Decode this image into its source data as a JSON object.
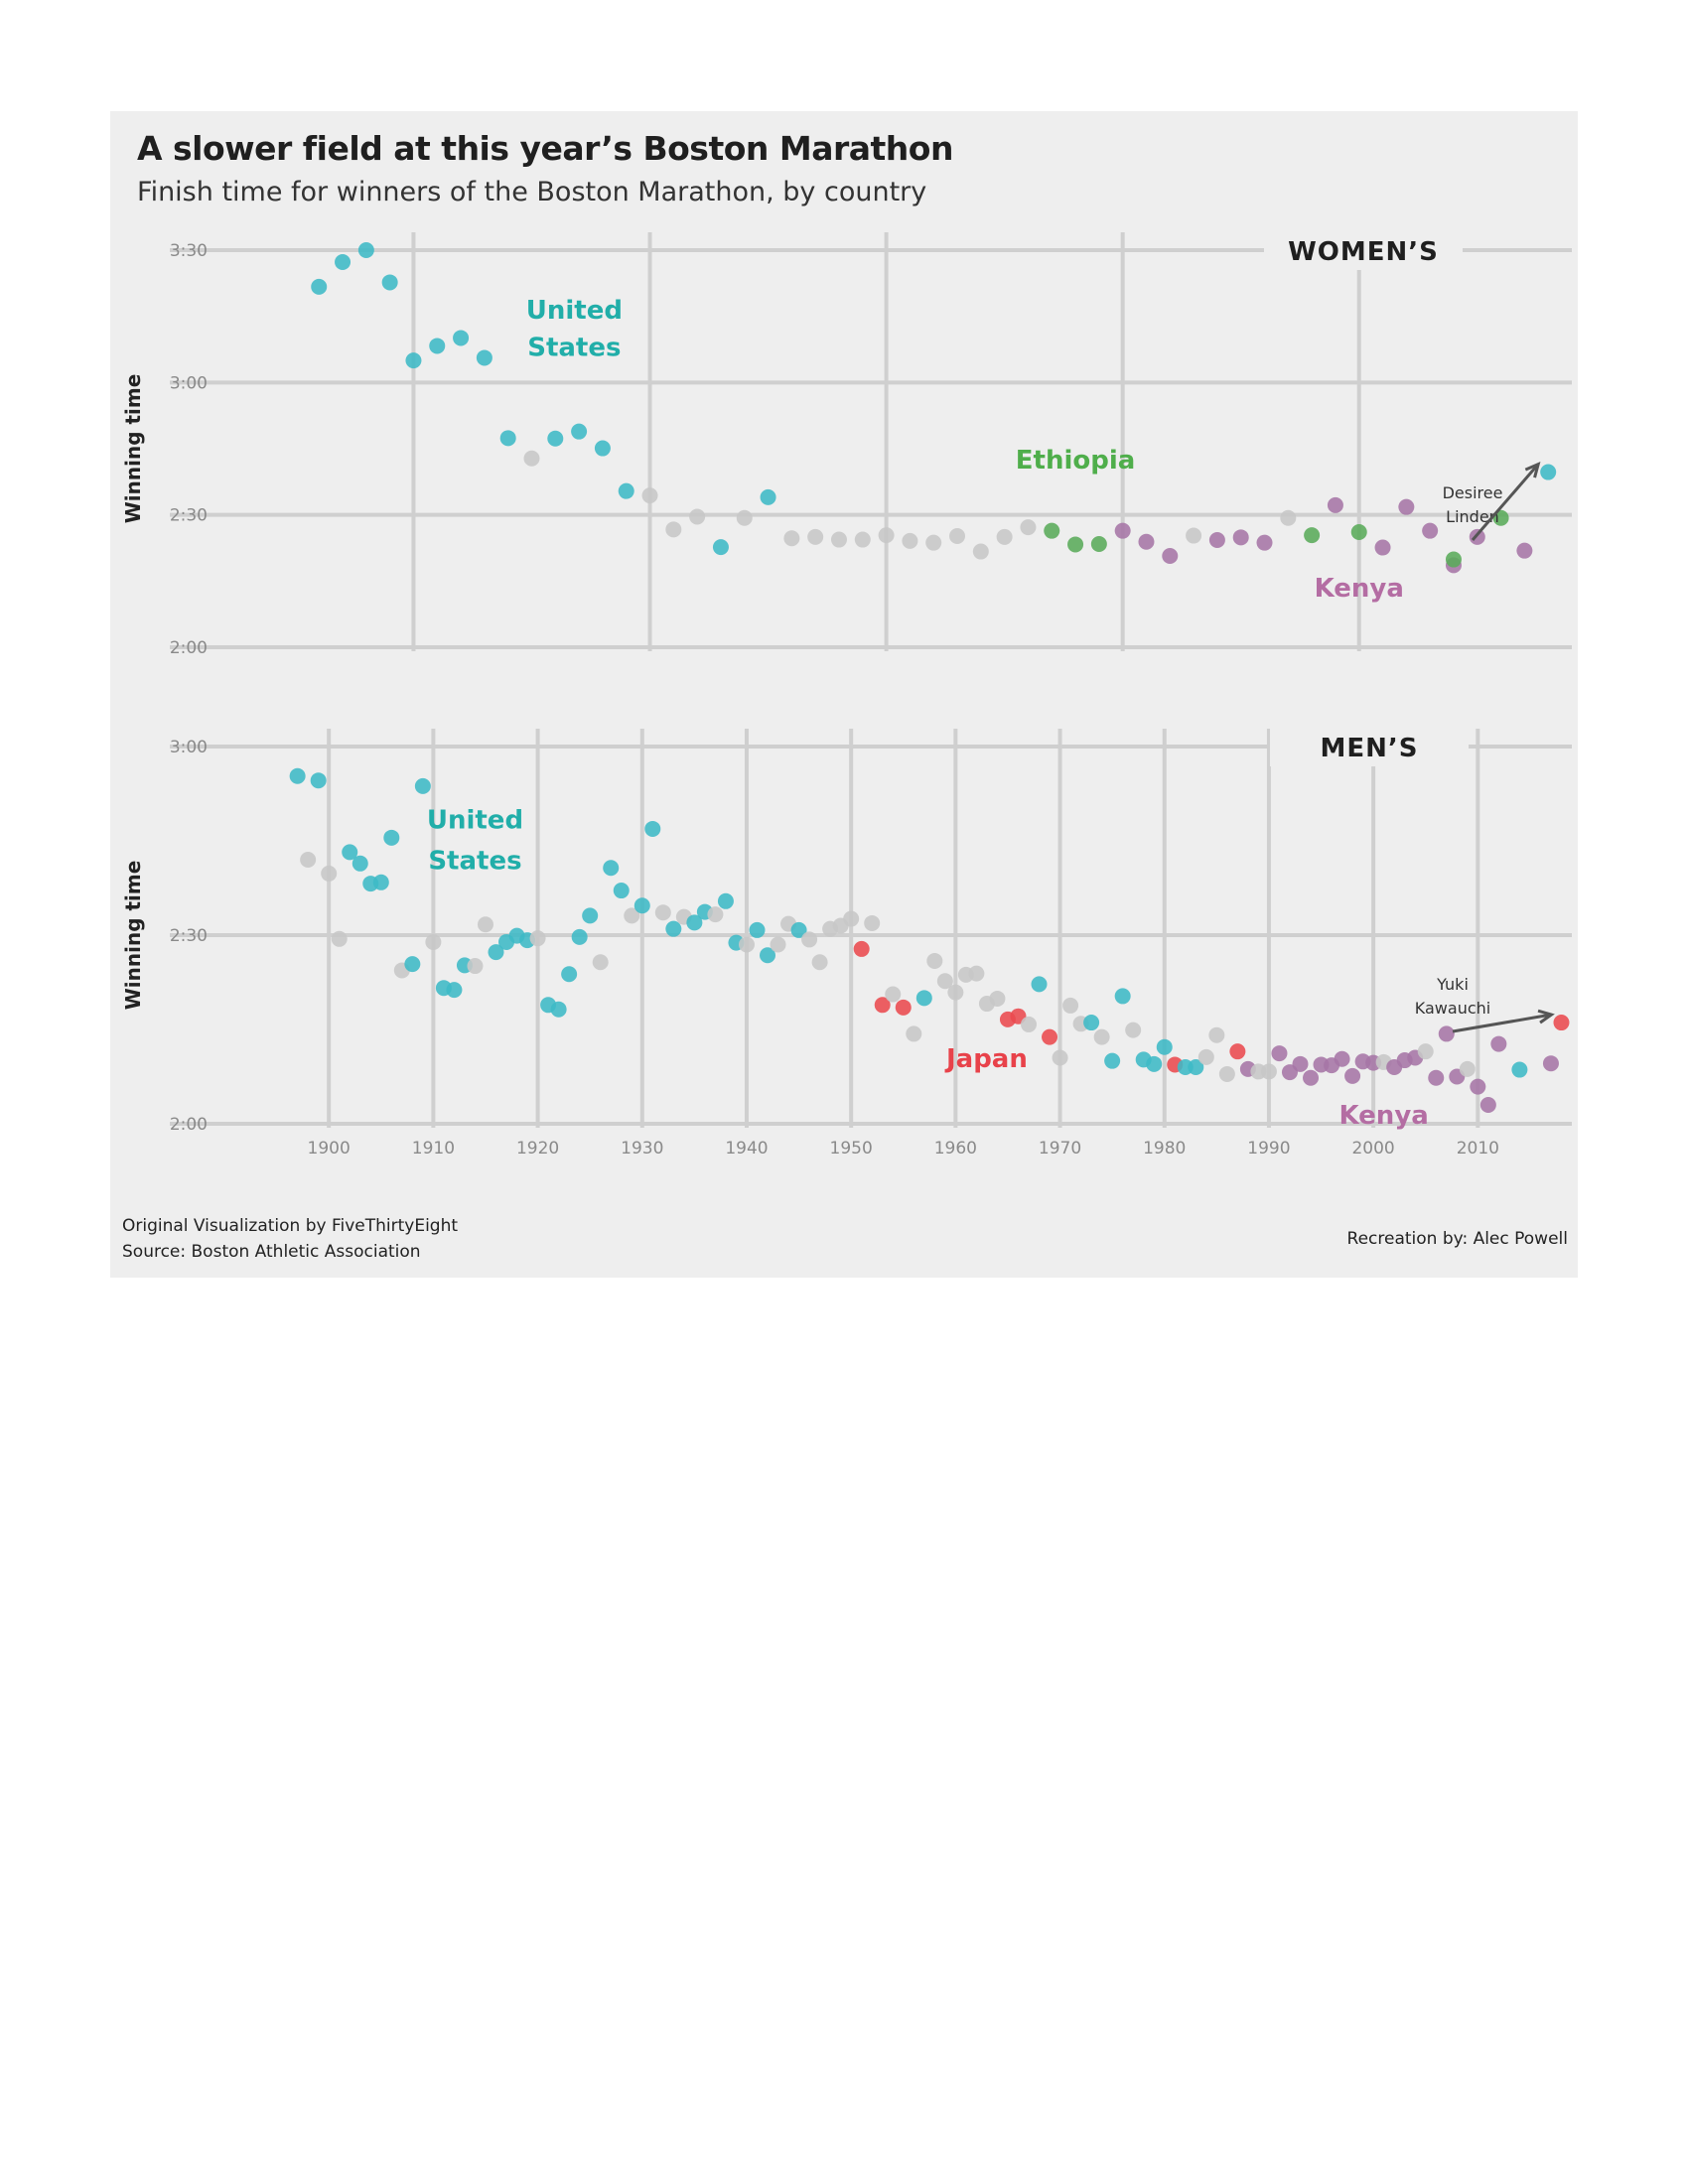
{
  "title": "A slower field at this year’s Boston Marathon",
  "subtitle": "Finish time for winners of the Boston Marathon, by country",
  "footer": {
    "credit": "Original Visualization by FiveThirtyEight",
    "source": "Source: Boston Athletic Association",
    "recreation": "Recreation by: Alec Powell"
  },
  "colors": {
    "United States": "#3dbac6",
    "Ethiopia": "#5aab5a",
    "Kenya": "#a675a6",
    "Japan": "#ea4a4f",
    "Other": "#c7c7c7",
    "label_us": "#21aea9",
    "label_ethiopia": "#4fae4b",
    "label_kenya": "#b46da3",
    "label_japan": "#e8424a"
  },
  "chart_data": [
    {
      "type": "scatter",
      "panel_label": "WOMEN’S",
      "ylabel": "Winning time",
      "xlim": [
        1962,
        2019
      ],
      "ylim": [
        120,
        210
      ],
      "xticks": [
        1970,
        1980,
        1990,
        2000,
        2010
      ],
      "yticks": [
        {
          "value": 120,
          "label": "2:00"
        },
        {
          "value": 150,
          "label": "2:30"
        },
        {
          "value": 180,
          "label": "3:00"
        },
        {
          "value": 210,
          "label": "3:30"
        }
      ],
      "grid": true,
      "country_labels": [
        {
          "text": "United",
          "x": 1976.8,
          "y": 194.5,
          "color_key": "label_us"
        },
        {
          "text": "States",
          "x": 1976.8,
          "y": 186.0,
          "color_key": "label_us"
        },
        {
          "text": "Ethiopia",
          "x": 1998.0,
          "y": 160.5,
          "color_key": "label_ethiopia"
        },
        {
          "text": "Kenya",
          "x": 2010.0,
          "y": 131.5,
          "color_key": "label_kenya"
        }
      ],
      "annotation": {
        "lines": [
          "Desiree",
          "Linden"
        ],
        "point": [
          2018,
          159.7
        ]
      },
      "points": [
        {
          "x": 1966,
          "y": 201.7,
          "c": "United States"
        },
        {
          "x": 1967,
          "y": 207.3,
          "c": "United States"
        },
        {
          "x": 1968,
          "y": 210.0,
          "c": "United States"
        },
        {
          "x": 1969,
          "y": 202.7,
          "c": "United States"
        },
        {
          "x": 1970,
          "y": 185.0,
          "c": "United States"
        },
        {
          "x": 1971,
          "y": 188.3,
          "c": "United States"
        },
        {
          "x": 1972,
          "y": 190.1,
          "c": "United States"
        },
        {
          "x": 1973,
          "y": 185.6,
          "c": "United States"
        },
        {
          "x": 1974,
          "y": 167.4,
          "c": "United States"
        },
        {
          "x": 1975,
          "y": 162.8,
          "c": "Other"
        },
        {
          "x": 1976,
          "y": 167.3,
          "c": "United States"
        },
        {
          "x": 1977,
          "y": 168.9,
          "c": "United States"
        },
        {
          "x": 1978,
          "y": 165.1,
          "c": "United States"
        },
        {
          "x": 1979,
          "y": 155.4,
          "c": "United States"
        },
        {
          "x": 1980,
          "y": 154.4,
          "c": "Other"
        },
        {
          "x": 1981,
          "y": 146.7,
          "c": "Other"
        },
        {
          "x": 1982,
          "y": 149.6,
          "c": "Other"
        },
        {
          "x": 1983,
          "y": 142.7,
          "c": "United States"
        },
        {
          "x": 1984,
          "y": 149.3,
          "c": "Other"
        },
        {
          "x": 1985,
          "y": 154.0,
          "c": "United States"
        },
        {
          "x": 1986,
          "y": 144.7,
          "c": "Other"
        },
        {
          "x": 1987,
          "y": 145.0,
          "c": "Other"
        },
        {
          "x": 1988,
          "y": 144.4,
          "c": "Other"
        },
        {
          "x": 1989,
          "y": 144.4,
          "c": "Other"
        },
        {
          "x": 1990,
          "y": 145.4,
          "c": "Other"
        },
        {
          "x": 1991,
          "y": 144.1,
          "c": "Other"
        },
        {
          "x": 1992,
          "y": 143.7,
          "c": "Other"
        },
        {
          "x": 1993,
          "y": 145.2,
          "c": "Other"
        },
        {
          "x": 1994,
          "y": 141.7,
          "c": "Other"
        },
        {
          "x": 1995,
          "y": 145.0,
          "c": "Other"
        },
        {
          "x": 1996,
          "y": 147.2,
          "c": "Other"
        },
        {
          "x": 1997,
          "y": 146.4,
          "c": "Ethiopia"
        },
        {
          "x": 1998,
          "y": 143.3,
          "c": "Ethiopia"
        },
        {
          "x": 1999,
          "y": 143.4,
          "c": "Ethiopia"
        },
        {
          "x": 2000,
          "y": 146.4,
          "c": "Kenya"
        },
        {
          "x": 2001,
          "y": 143.9,
          "c": "Kenya"
        },
        {
          "x": 2002,
          "y": 140.7,
          "c": "Kenya"
        },
        {
          "x": 2003,
          "y": 145.3,
          "c": "Other"
        },
        {
          "x": 2004,
          "y": 144.3,
          "c": "Kenya"
        },
        {
          "x": 2005,
          "y": 144.9,
          "c": "Kenya"
        },
        {
          "x": 2006,
          "y": 143.7,
          "c": "Kenya"
        },
        {
          "x": 2007,
          "y": 149.3,
          "c": "Other"
        },
        {
          "x": 2008,
          "y": 145.4,
          "c": "Ethiopia"
        },
        {
          "x": 2009,
          "y": 152.2,
          "c": "Kenya"
        },
        {
          "x": 2010,
          "y": 146.1,
          "c": "Ethiopia"
        },
        {
          "x": 2011,
          "y": 142.6,
          "c": "Kenya"
        },
        {
          "x": 2012,
          "y": 151.8,
          "c": "Kenya"
        },
        {
          "x": 2013,
          "y": 146.4,
          "c": "Kenya"
        },
        {
          "x": 2014,
          "y": 138.6,
          "c": "Kenya"
        },
        {
          "x": 2014,
          "y": 139.9,
          "c": "Ethiopia"
        },
        {
          "x": 2015,
          "y": 145.0,
          "c": "Kenya"
        },
        {
          "x": 2016,
          "y": 149.3,
          "c": "Ethiopia"
        },
        {
          "x": 2017,
          "y": 141.9,
          "c": "Kenya"
        },
        {
          "x": 2018,
          "y": 159.7,
          "c": "United States"
        }
      ]
    },
    {
      "type": "scatter",
      "panel_label": "MEN’S",
      "ylabel": "Winning time",
      "xlim": [
        1890,
        2019
      ],
      "ylim": [
        120,
        180
      ],
      "xticks": [
        1900,
        1910,
        1920,
        1930,
        1940,
        1950,
        1960,
        1970,
        1980,
        1990,
        2000,
        2010
      ],
      "yticks": [
        {
          "value": 120,
          "label": "2:00"
        },
        {
          "value": 150,
          "label": "2:30"
        },
        {
          "value": 180,
          "label": "3:00"
        }
      ],
      "grid": true,
      "country_labels": [
        {
          "text": "United",
          "x": 1914.0,
          "y": 167.0,
          "color_key": "label_us"
        },
        {
          "text": "States",
          "x": 1914.0,
          "y": 160.5,
          "color_key": "label_us"
        },
        {
          "text": "Japan",
          "x": 1963.0,
          "y": 129.0,
          "color_key": "label_japan"
        },
        {
          "text": "Kenya",
          "x": 2001.0,
          "y": 120.0,
          "color_key": "label_kenya"
        }
      ],
      "annotation": {
        "lines": [
          "Yuki",
          "Kawauchi"
        ],
        "point": [
          2018,
          136.1
        ]
      },
      "points": [
        {
          "x": 1897,
          "y": 175.3,
          "c": "United States"
        },
        {
          "x": 1898,
          "y": 162.0,
          "c": "Other"
        },
        {
          "x": 1899,
          "y": 174.6,
          "c": "United States"
        },
        {
          "x": 1900,
          "y": 159.8,
          "c": "Other"
        },
        {
          "x": 1901,
          "y": 149.4,
          "c": "Other"
        },
        {
          "x": 1902,
          "y": 163.2,
          "c": "United States"
        },
        {
          "x": 1903,
          "y": 161.4,
          "c": "United States"
        },
        {
          "x": 1904,
          "y": 158.2,
          "c": "United States"
        },
        {
          "x": 1905,
          "y": 158.4,
          "c": "United States"
        },
        {
          "x": 1906,
          "y": 165.5,
          "c": "United States"
        },
        {
          "x": 1907,
          "y": 144.4,
          "c": "Other"
        },
        {
          "x": 1908,
          "y": 145.4,
          "c": "United States"
        },
        {
          "x": 1909,
          "y": 173.7,
          "c": "United States"
        },
        {
          "x": 1910,
          "y": 148.9,
          "c": "Other"
        },
        {
          "x": 1911,
          "y": 141.6,
          "c": "United States"
        },
        {
          "x": 1912,
          "y": 141.3,
          "c": "United States"
        },
        {
          "x": 1913,
          "y": 145.2,
          "c": "United States"
        },
        {
          "x": 1914,
          "y": 145.1,
          "c": "Other"
        },
        {
          "x": 1915,
          "y": 151.7,
          "c": "Other"
        },
        {
          "x": 1916,
          "y": 147.3,
          "c": "United States"
        },
        {
          "x": 1917,
          "y": 148.9,
          "c": "United States"
        },
        {
          "x": 1918,
          "y": 149.9,
          "c": "United States"
        },
        {
          "x": 1919,
          "y": 149.2,
          "c": "United States"
        },
        {
          "x": 1920,
          "y": 149.5,
          "c": "Other"
        },
        {
          "x": 1921,
          "y": 138.9,
          "c": "United States"
        },
        {
          "x": 1922,
          "y": 138.2,
          "c": "United States"
        },
        {
          "x": 1923,
          "y": 143.8,
          "c": "United States"
        },
        {
          "x": 1924,
          "y": 149.7,
          "c": "United States"
        },
        {
          "x": 1925,
          "y": 153.1,
          "c": "United States"
        },
        {
          "x": 1926,
          "y": 145.7,
          "c": "Other"
        },
        {
          "x": 1927,
          "y": 160.7,
          "c": "United States"
        },
        {
          "x": 1928,
          "y": 157.1,
          "c": "United States"
        },
        {
          "x": 1929,
          "y": 153.1,
          "c": "Other"
        },
        {
          "x": 1930,
          "y": 154.7,
          "c": "United States"
        },
        {
          "x": 1931,
          "y": 166.9,
          "c": "United States"
        },
        {
          "x": 1932,
          "y": 153.6,
          "c": "Other"
        },
        {
          "x": 1933,
          "y": 151.0,
          "c": "United States"
        },
        {
          "x": 1934,
          "y": 152.9,
          "c": "Other"
        },
        {
          "x": 1935,
          "y": 152.0,
          "c": "United States"
        },
        {
          "x": 1936,
          "y": 153.7,
          "c": "United States"
        },
        {
          "x": 1937,
          "y": 153.3,
          "c": "Other"
        },
        {
          "x": 1938,
          "y": 155.4,
          "c": "United States"
        },
        {
          "x": 1939,
          "y": 148.8,
          "c": "United States"
        },
        {
          "x": 1940,
          "y": 148.5,
          "c": "Other"
        },
        {
          "x": 1941,
          "y": 150.8,
          "c": "United States"
        },
        {
          "x": 1942,
          "y": 146.8,
          "c": "United States"
        },
        {
          "x": 1943,
          "y": 148.5,
          "c": "Other"
        },
        {
          "x": 1944,
          "y": 151.8,
          "c": "Other"
        },
        {
          "x": 1945,
          "y": 150.8,
          "c": "United States"
        },
        {
          "x": 1946,
          "y": 149.3,
          "c": "Other"
        },
        {
          "x": 1947,
          "y": 145.7,
          "c": "Other"
        },
        {
          "x": 1948,
          "y": 151.0,
          "c": "Other"
        },
        {
          "x": 1949,
          "y": 151.5,
          "c": "Other"
        },
        {
          "x": 1950,
          "y": 152.6,
          "c": "Other"
        },
        {
          "x": 1951,
          "y": 147.8,
          "c": "Japan"
        },
        {
          "x": 1952,
          "y": 151.9,
          "c": "Other"
        },
        {
          "x": 1953,
          "y": 138.9,
          "c": "Japan"
        },
        {
          "x": 1954,
          "y": 140.6,
          "c": "Other"
        },
        {
          "x": 1955,
          "y": 138.5,
          "c": "Japan"
        },
        {
          "x": 1956,
          "y": 134.3,
          "c": "Other"
        },
        {
          "x": 1957,
          "y": 140.0,
          "c": "United States"
        },
        {
          "x": 1958,
          "y": 145.9,
          "c": "Other"
        },
        {
          "x": 1959,
          "y": 142.7,
          "c": "Other"
        },
        {
          "x": 1960,
          "y": 140.9,
          "c": "Other"
        },
        {
          "x": 1961,
          "y": 143.7,
          "c": "Other"
        },
        {
          "x": 1962,
          "y": 143.9,
          "c": "Other"
        },
        {
          "x": 1963,
          "y": 139.1,
          "c": "Other"
        },
        {
          "x": 1964,
          "y": 139.9,
          "c": "Other"
        },
        {
          "x": 1965,
          "y": 136.6,
          "c": "Japan"
        },
        {
          "x": 1966,
          "y": 137.1,
          "c": "Japan"
        },
        {
          "x": 1967,
          "y": 135.8,
          "c": "Other"
        },
        {
          "x": 1968,
          "y": 142.2,
          "c": "United States"
        },
        {
          "x": 1969,
          "y": 133.8,
          "c": "Japan"
        },
        {
          "x": 1970,
          "y": 130.5,
          "c": "Other"
        },
        {
          "x": 1971,
          "y": 138.8,
          "c": "Other"
        },
        {
          "x": 1972,
          "y": 135.9,
          "c": "Other"
        },
        {
          "x": 1973,
          "y": 136.1,
          "c": "United States"
        },
        {
          "x": 1974,
          "y": 133.8,
          "c": "Other"
        },
        {
          "x": 1975,
          "y": 130.0,
          "c": "United States"
        },
        {
          "x": 1976,
          "y": 140.3,
          "c": "United States"
        },
        {
          "x": 1977,
          "y": 134.9,
          "c": "Other"
        },
        {
          "x": 1978,
          "y": 130.2,
          "c": "United States"
        },
        {
          "x": 1979,
          "y": 129.5,
          "c": "United States"
        },
        {
          "x": 1980,
          "y": 132.2,
          "c": "United States"
        },
        {
          "x": 1981,
          "y": 129.4,
          "c": "Japan"
        },
        {
          "x": 1982,
          "y": 129.0,
          "c": "United States"
        },
        {
          "x": 1983,
          "y": 129.0,
          "c": "United States"
        },
        {
          "x": 1984,
          "y": 130.6,
          "c": "Other"
        },
        {
          "x": 1985,
          "y": 134.1,
          "c": "Other"
        },
        {
          "x": 1986,
          "y": 127.9,
          "c": "Other"
        },
        {
          "x": 1987,
          "y": 131.5,
          "c": "Japan"
        },
        {
          "x": 1988,
          "y": 128.7,
          "c": "Kenya"
        },
        {
          "x": 1989,
          "y": 128.3,
          "c": "Other"
        },
        {
          "x": 1990,
          "y": 128.3,
          "c": "Other"
        },
        {
          "x": 1991,
          "y": 131.2,
          "c": "Kenya"
        },
        {
          "x": 1992,
          "y": 128.2,
          "c": "Kenya"
        },
        {
          "x": 1993,
          "y": 129.5,
          "c": "Kenya"
        },
        {
          "x": 1994,
          "y": 127.3,
          "c": "Kenya"
        },
        {
          "x": 1995,
          "y": 129.4,
          "c": "Kenya"
        },
        {
          "x": 1996,
          "y": 129.3,
          "c": "Kenya"
        },
        {
          "x": 1997,
          "y": 130.3,
          "c": "Kenya"
        },
        {
          "x": 1998,
          "y": 127.6,
          "c": "Kenya"
        },
        {
          "x": 1999,
          "y": 129.9,
          "c": "Kenya"
        },
        {
          "x": 2000,
          "y": 129.7,
          "c": "Kenya"
        },
        {
          "x": 2001,
          "y": 129.8,
          "c": "Other"
        },
        {
          "x": 2002,
          "y": 129.0,
          "c": "Kenya"
        },
        {
          "x": 2003,
          "y": 130.1,
          "c": "Kenya"
        },
        {
          "x": 2004,
          "y": 130.5,
          "c": "Kenya"
        },
        {
          "x": 2005,
          "y": 131.5,
          "c": "Other"
        },
        {
          "x": 2006,
          "y": 127.3,
          "c": "Kenya"
        },
        {
          "x": 2007,
          "y": 134.3,
          "c": "Kenya"
        },
        {
          "x": 2008,
          "y": 127.5,
          "c": "Kenya"
        },
        {
          "x": 2009,
          "y": 128.7,
          "c": "Other"
        },
        {
          "x": 2010,
          "y": 125.9,
          "c": "Kenya"
        },
        {
          "x": 2011,
          "y": 123.0,
          "c": "Kenya"
        },
        {
          "x": 2012,
          "y": 132.7,
          "c": "Kenya"
        },
        {
          "x": 2014,
          "y": 128.6,
          "c": "United States"
        },
        {
          "x": 2017,
          "y": 129.6,
          "c": "Kenya"
        },
        {
          "x": 2018,
          "y": 136.1,
          "c": "Japan"
        }
      ]
    }
  ]
}
